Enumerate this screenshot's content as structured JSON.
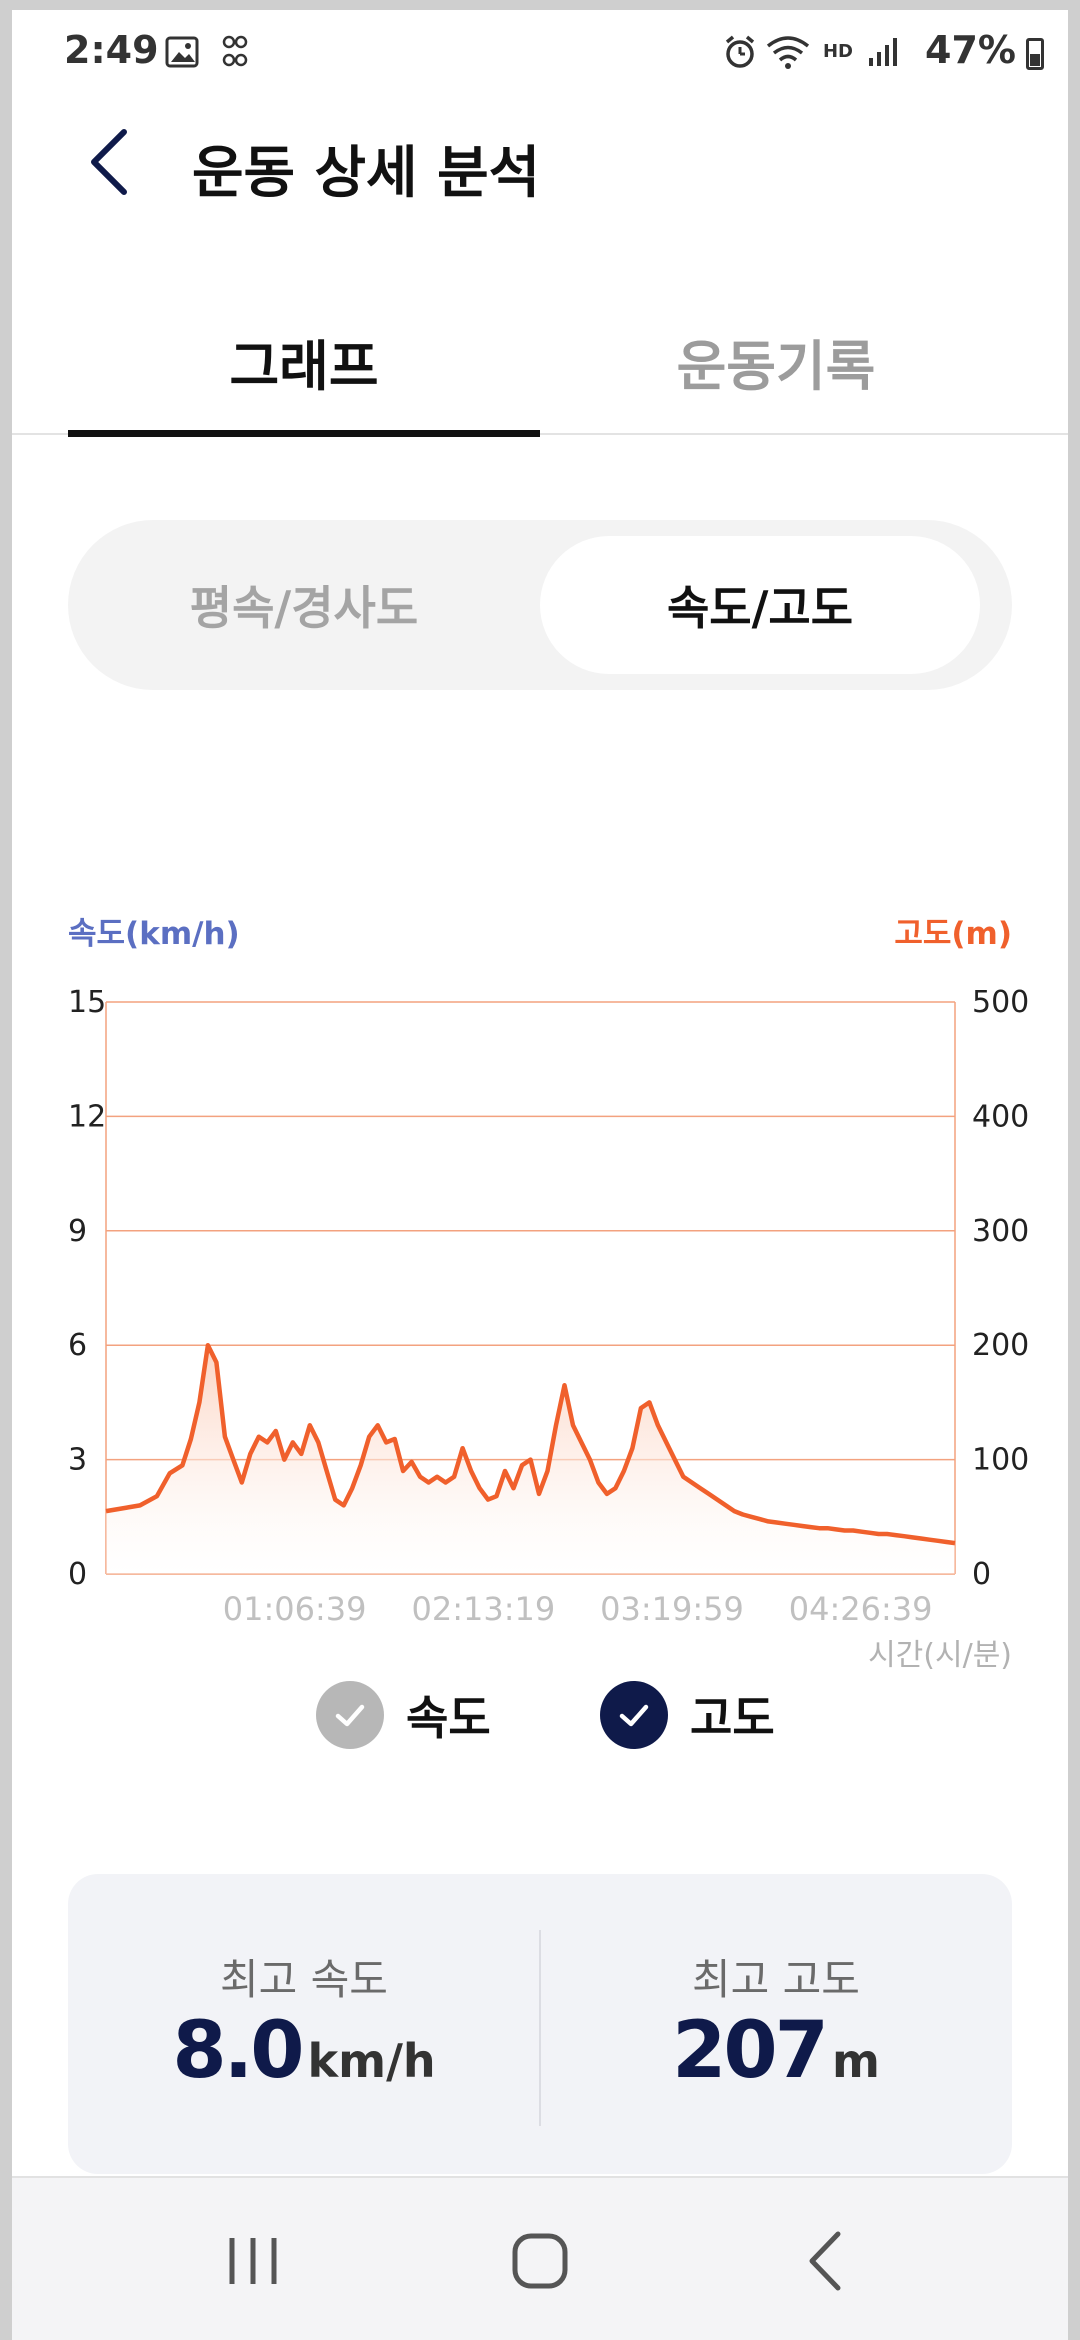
{
  "status_bar": {
    "time": "2:49",
    "battery": "47%",
    "icons": [
      "image-icon",
      "badge-icon",
      "alarm-icon",
      "wifi-icon",
      "hd-voice-icon",
      "signal-icon",
      "battery-icon"
    ],
    "hd_voice_text": "HD"
  },
  "header": {
    "title": "운동 상세 분석",
    "back_icon": "chevron-left-icon"
  },
  "tabs": [
    {
      "label": "그래프",
      "active": true
    },
    {
      "label": "운동기록",
      "active": false
    }
  ],
  "segment": {
    "options": [
      {
        "label": "평속/경사도",
        "active": false
      },
      {
        "label": "속도/고도",
        "active": true
      }
    ]
  },
  "chart_data": {
    "type": "area",
    "y_left_label": "속도(km/h)",
    "y_right_label": "고도(m)",
    "x_label": "시간(시/분)",
    "y_left_ticks": [
      "15",
      "12",
      "9",
      "6",
      "3",
      "0"
    ],
    "y_right_ticks": [
      "500",
      "400",
      "300",
      "200",
      "100",
      "0"
    ],
    "x_ticks": [
      "01:06:39",
      "02:13:19",
      "03:19:59",
      "04:26:39"
    ],
    "y_left_range": [
      0,
      15
    ],
    "y_right_range": [
      0,
      500
    ],
    "grid": true,
    "colors": {
      "line": "#f0602c",
      "fill_top": "#fbd0bd",
      "grid": "#f3a27f",
      "left_axis_title": "#5b6fc2",
      "right_axis_title": "#f0602c"
    },
    "series": [
      {
        "name": "고도",
        "x_fraction": [
          0,
          0.04,
          0.06,
          0.075,
          0.09,
          0.1,
          0.11,
          0.12,
          0.13,
          0.14,
          0.15,
          0.16,
          0.17,
          0.18,
          0.19,
          0.2,
          0.21,
          0.22,
          0.23,
          0.24,
          0.25,
          0.26,
          0.27,
          0.28,
          0.29,
          0.3,
          0.31,
          0.32,
          0.33,
          0.34,
          0.35,
          0.36,
          0.37,
          0.38,
          0.39,
          0.4,
          0.41,
          0.42,
          0.43,
          0.44,
          0.45,
          0.46,
          0.47,
          0.48,
          0.49,
          0.5,
          0.51,
          0.52,
          0.53,
          0.54,
          0.55,
          0.56,
          0.57,
          0.58,
          0.59,
          0.6,
          0.61,
          0.62,
          0.63,
          0.64,
          0.65,
          0.66,
          0.67,
          0.68,
          0.69,
          0.7,
          0.71,
          0.72,
          0.73,
          0.74,
          0.75,
          0.76,
          0.77,
          0.78,
          0.79,
          0.8,
          0.81,
          0.82,
          0.83,
          0.84,
          0.85,
          0.86,
          0.87,
          0.88,
          0.89,
          0.9,
          0.91,
          0.92,
          0.93,
          0.94,
          0.95,
          0.96,
          0.97,
          0.98,
          0.99,
          1.0
        ],
        "values": [
          55,
          60,
          68,
          88,
          95,
          118,
          150,
          200,
          185,
          120,
          100,
          80,
          105,
          120,
          115,
          125,
          100,
          115,
          105,
          130,
          115,
          90,
          65,
          60,
          75,
          95,
          120,
          130,
          115,
          118,
          90,
          98,
          85,
          80,
          85,
          80,
          85,
          110,
          90,
          75,
          65,
          68,
          90,
          75,
          95,
          100,
          70,
          90,
          130,
          165,
          130,
          115,
          100,
          80,
          70,
          75,
          90,
          110,
          145,
          150,
          130,
          115,
          100,
          85,
          80,
          75,
          70,
          65,
          60,
          55,
          52,
          50,
          48,
          46,
          45,
          44,
          43,
          42,
          41,
          40,
          40,
          39,
          38,
          38,
          37,
          36,
          35,
          35,
          34,
          33,
          32,
          31,
          30,
          29,
          28,
          27
        ]
      }
    ]
  },
  "legend": {
    "items": [
      {
        "label": "속도",
        "checked_style": "gray"
      },
      {
        "label": "고도",
        "checked_style": "navy"
      }
    ]
  },
  "summary": {
    "max_speed_label": "최고 속도",
    "max_speed_value": "8.0",
    "max_speed_unit": "km/h",
    "max_alt_label": "최고 고도",
    "max_alt_value": "207",
    "max_alt_unit": "m"
  },
  "nav_bar": {
    "icons": [
      "recent-apps-icon",
      "home-icon",
      "back-icon"
    ]
  }
}
